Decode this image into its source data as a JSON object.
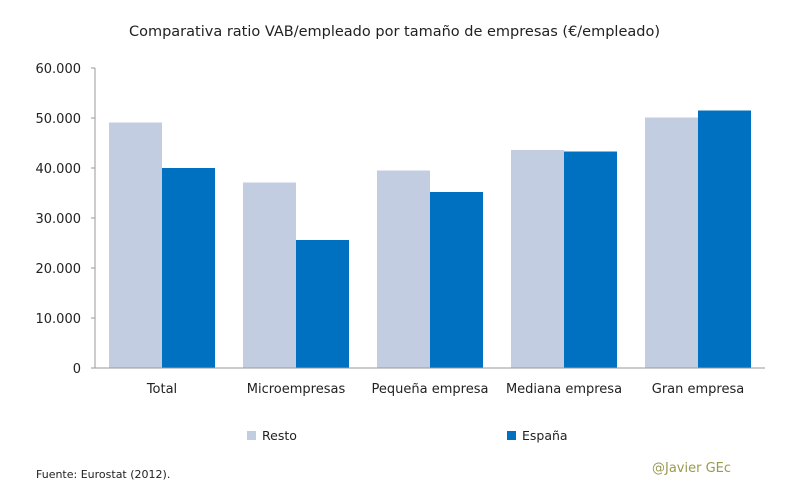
{
  "chart_data": {
    "type": "bar",
    "title": "Comparativa ratio VAB/empleado por tamaño de empresas (€/empleado)",
    "categories": [
      "Total",
      "Microempresas",
      "Pequeña empresa",
      "Mediana empresa",
      "Gran empresa"
    ],
    "series": [
      {
        "name": "Resto",
        "color": "#c3cde1",
        "values": [
          49100,
          37100,
          39500,
          43600,
          50100
        ]
      },
      {
        "name": "España",
        "color": "#0070c0",
        "values": [
          40000,
          25600,
          35200,
          43300,
          51500
        ]
      }
    ],
    "yticks": [
      "0",
      "10.000",
      "20.000",
      "30.000",
      "40.000",
      "50.000",
      "60.000"
    ],
    "ylim": [
      0,
      60000
    ],
    "grid": false,
    "legend": "bottom"
  },
  "source": "Fuente: Eurostat (2012).",
  "credit": "@Javier GEc"
}
